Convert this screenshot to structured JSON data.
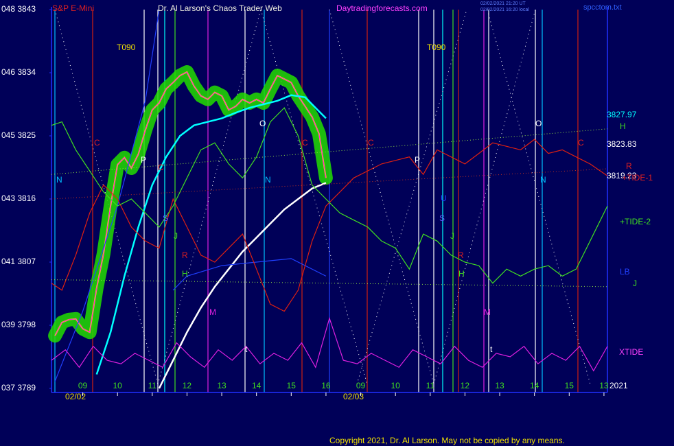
{
  "chart_data": {
    "type": "line",
    "title": "Dr. Al Larson's Chaos Trader Web",
    "symbol": "S&P E-Mini",
    "website": "Daytradingforecasts.com",
    "timestamp_1": "02/02/2021 21:20 UT",
    "timestamp_2": "02/02/2021 16:20 local",
    "file": "spcctom.txt",
    "copyright": "Copyright 2021, Dr. Al Larson. May not be copied by any means.",
    "year": "2021",
    "dates": [
      "02/02",
      "02/03"
    ],
    "xlim": [
      8.1,
      24.1
    ],
    "xticks": [
      {
        "value": 9,
        "label": "09"
      },
      10,
      11,
      12,
      13,
      14,
      15,
      16,
      {
        "value": 17,
        "label": "09"
      },
      {
        "value": 18,
        "label": "10"
      },
      {
        "value": 19,
        "label": "11"
      },
      {
        "value": 20,
        "label": "12"
      },
      {
        "value": 21,
        "label": "13"
      },
      {
        "value": 22,
        "label": "14"
      },
      {
        "value": 23,
        "label": "15"
      },
      {
        "value": 24,
        "label": "13"
      }
    ],
    "ylim": [
      3789,
      3843
    ],
    "yticks": [
      {
        "value": 3843,
        "label": "048  3843"
      },
      {
        "value": 3834,
        "label": "046  3834"
      },
      {
        "value": 3825,
        "label": "045  3825"
      },
      {
        "value": 3816,
        "label": "043  3816"
      },
      {
        "value": 3807,
        "label": "041  3807"
      },
      {
        "value": 3798,
        "label": "039  3798"
      },
      {
        "value": 3789,
        "label": "037  3789"
      }
    ],
    "grid": false,
    "annotations": [
      "T090",
      "T090",
      "C",
      "C",
      "C",
      "C",
      "C",
      "N",
      "N",
      "N",
      "O",
      "O",
      "P",
      "P",
      "S",
      "S",
      "J",
      "J",
      "R",
      "R",
      "H",
      "H",
      "M",
      "M",
      "t",
      "t",
      "U",
      "3827.97",
      "H",
      "3823.83",
      "R",
      "3819.23",
      "+TIDE-1",
      "+TIDE-2",
      "LB",
      "J",
      "XTIDE"
    ],
    "series": [
      {
        "color": "#ff00ff",
        "glow": "#22dd00",
        "x": [
          8.2,
          8.4,
          8.6,
          8.8,
          9.0,
          9.2,
          9.4,
          9.6,
          9.8,
          10.0,
          10.2,
          10.4,
          10.6,
          10.8,
          11.0,
          11.2,
          11.4,
          11.6,
          11.8,
          12.0,
          12.2,
          12.4,
          12.6,
          12.8,
          13.0,
          13.2,
          13.4,
          13.6,
          13.8,
          14.0,
          14.2,
          14.4,
          14.6,
          14.8,
          15.0,
          15.2,
          15.4,
          15.6,
          15.8,
          16.0
        ],
        "values": [
          3796.5,
          3798.4,
          3798.8,
          3798.9,
          3797.5,
          3797.0,
          3803.3,
          3808.2,
          3815.0,
          3820.9,
          3821.9,
          3820.4,
          3822.4,
          3825.8,
          3828.7,
          3829.7,
          3831.7,
          3832.6,
          3833.6,
          3834.1,
          3832.1,
          3830.7,
          3830.2,
          3831.2,
          3830.7,
          3828.7,
          3829.2,
          3830.2,
          3829.7,
          3830.2,
          3829.7,
          3831.7,
          3833.6,
          3833.1,
          3832.6,
          3830.7,
          3829.2,
          3827.7,
          3825.3,
          3819.0
        ]
      },
      {
        "color": "#00ffff",
        "width": 2.5,
        "x": [
          9.4,
          9.8,
          10.2,
          10.6,
          11.0,
          11.4,
          11.8,
          12.2,
          12.6,
          13.0,
          13.4,
          13.8,
          14.2,
          14.6,
          15.0,
          15.4,
          15.8,
          16.0
        ],
        "values": [
          3791,
          3797,
          3805,
          3812,
          3818,
          3822,
          3825,
          3826.5,
          3827,
          3827.5,
          3828.3,
          3829,
          3829.5,
          3830,
          3830.8,
          3830.5,
          3828.5,
          3827.5
        ]
      },
      {
        "color": "#ffffff",
        "width": 2.5,
        "x": [
          11.2,
          11.6,
          12.0,
          12.4,
          12.8,
          13.2,
          13.6,
          14.0,
          14.4,
          14.8,
          15.2,
          15.6,
          16.0
        ],
        "values": [
          3789,
          3793,
          3797,
          3800.5,
          3803.5,
          3806,
          3808.5,
          3810.5,
          3812.5,
          3814.5,
          3816,
          3817.5,
          3818.3
        ]
      },
      {
        "color": "#2040ff",
        "width": 1.2,
        "x": [
          8.2,
          9.0,
          10.0,
          10.8,
          11.2,
          11.4,
          11.6,
          12.0,
          13.0,
          14.0,
          15.0,
          16.0
        ],
        "values": [
          3790,
          3800,
          3815,
          3830,
          3843,
          null,
          3803,
          3805,
          3806.5,
          3807,
          3807.5,
          3805
        ]
      },
      {
        "color": "#e02010",
        "width": 1.2,
        "x": [
          8.1,
          8.4,
          8.8,
          9.2,
          9.6,
          10.0,
          10.4,
          10.8,
          11.2,
          11.6,
          12.0,
          12.4,
          12.8,
          13.2,
          13.6,
          14.0,
          14.4,
          14.8,
          15.2,
          15.6,
          16.0,
          16.4,
          16.8,
          17.2,
          17.6,
          18.0,
          18.4,
          18.8,
          19.2,
          19.6,
          20.0,
          20.4,
          20.8,
          21.2,
          21.6,
          22.0,
          22.4,
          22.8,
          23.2,
          23.6,
          24.1
        ],
        "values": [
          3804,
          3803,
          3808,
          3814,
          3818,
          3816,
          3812,
          3810,
          3809,
          3816,
          3812,
          3808,
          3807,
          3809,
          3811,
          3806,
          3801,
          3800,
          3803,
          3810,
          3815,
          3817,
          3819,
          3820,
          3821,
          3821.5,
          3822,
          3819.5,
          3823,
          3822,
          3821,
          3822.5,
          3824,
          3823.5,
          3823,
          3824.5,
          3822.5,
          3823,
          3822,
          3821,
          3819.3
        ]
      },
      {
        "color": "#40e020",
        "width": 1.2,
        "x": [
          8.1,
          8.4,
          8.8,
          9.2,
          9.6,
          10.0,
          10.4,
          10.8,
          11.2,
          11.6,
          12.0,
          12.4,
          12.8,
          13.2,
          13.6,
          14.0,
          14.4,
          14.8,
          15.2,
          15.6,
          16.0,
          16.4,
          16.8,
          17.2,
          17.6,
          18.0,
          18.4,
          18.8,
          19.2,
          19.6,
          20.0,
          20.4,
          20.8,
          21.2,
          21.6,
          22.0,
          22.4,
          22.8,
          23.2,
          23.6,
          24.1
        ],
        "values": [
          3826.5,
          3827,
          3823,
          3820,
          3817,
          3815,
          3816,
          3814,
          3812,
          3815,
          3819,
          3823,
          3824,
          3821,
          3819,
          3822,
          3827,
          3829,
          3825,
          3818,
          3816,
          3814,
          3813,
          3812,
          3810,
          3809,
          3806,
          3811,
          3810,
          3808,
          3807,
          3806.5,
          3804,
          3806,
          3805,
          3806,
          3806.5,
          3805,
          3806,
          3810,
          3815
        ]
      },
      {
        "color": "#e020e0",
        "width": 1.2,
        "x": [
          8.1,
          8.5,
          8.9,
          9.3,
          9.7,
          10.1,
          10.5,
          10.9,
          11.3,
          11.7,
          12.1,
          12.5,
          12.9,
          13.3,
          13.7,
          14.1,
          14.5,
          14.9,
          15.3,
          15.7,
          16.1,
          16.5,
          16.9,
          17.3,
          17.7,
          18.1,
          18.5,
          18.9,
          19.3,
          19.7,
          20.1,
          20.5,
          20.9,
          21.3,
          21.7,
          22.1,
          22.5,
          22.9,
          23.3,
          23.7,
          24.1
        ],
        "values": [
          3793,
          3794.5,
          3792,
          3795,
          3793,
          3792.5,
          3794,
          3793,
          3792,
          3795.5,
          3793.5,
          3792,
          3794.5,
          3793,
          3795,
          3792.5,
          3794,
          3793,
          3795.5,
          3792,
          3799,
          3793,
          3792.5,
          3794,
          3793,
          3792,
          3794.5,
          3793.5,
          3792.5,
          3795,
          3793,
          3792,
          3794,
          3793.5,
          3795,
          3792.5,
          3794,
          3793,
          3795,
          3791.5,
          3795
        ]
      },
      {
        "color": "#90e040",
        "width": 1,
        "dotted": true,
        "x": [
          8.1,
          24.1
        ],
        "values": [
          3819.5,
          3826
        ]
      },
      {
        "color": "#c03020",
        "width": 1,
        "dotted": true,
        "x": [
          8.1,
          24.1
        ],
        "values": [
          3816,
          3820.3
        ]
      },
      {
        "color": "#90e040",
        "width": 1,
        "dotted": true,
        "x": [
          8.1,
          24.1
        ],
        "values": [
          3804.5,
          3803.5
        ]
      }
    ]
  }
}
